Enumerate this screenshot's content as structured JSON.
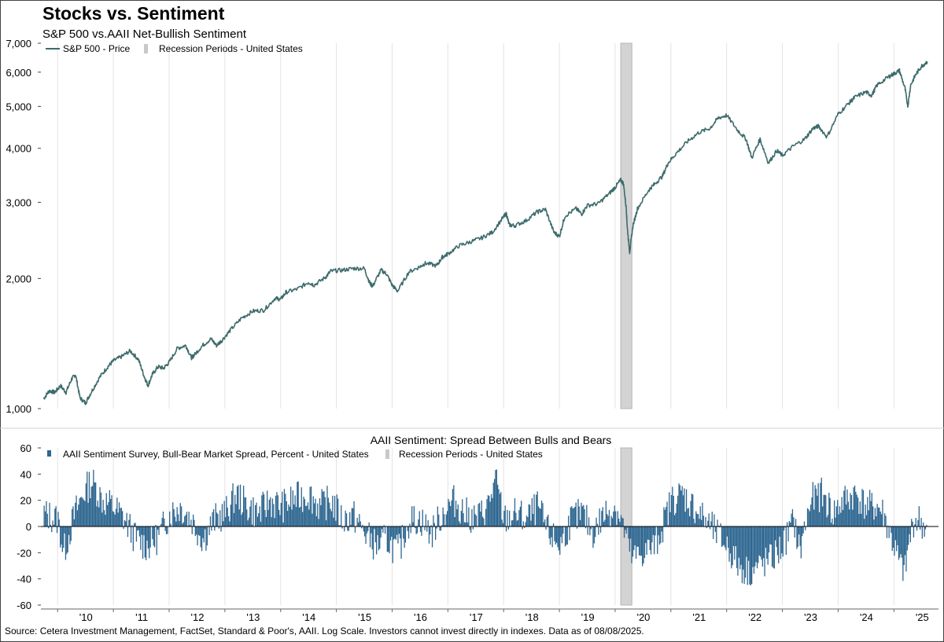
{
  "title": "Stocks vs. Sentiment",
  "subtitle": "S&P 500 vs.AAII Net-Bullish Sentiment",
  "source": "Source: Cetera Investment Management, FactSet, Standard & Poor's, AAII. Log Scale. Investors cannot invest directly in indexes. Data as of 08/08/2025.",
  "colors": {
    "price_line": "#3d6b6b",
    "spread_bars": "#2e6690",
    "recession": "#d3d3d3",
    "grid": "#e3e3e3"
  },
  "chart_data": [
    {
      "type": "line",
      "scale": "log",
      "ylim": [
        1000,
        7000
      ],
      "xlim": [
        2009.7,
        2025.8
      ],
      "y_ticks": [
        1000,
        2000,
        3000,
        4000,
        5000,
        6000,
        7000
      ],
      "y_tick_labels": [
        "1,000",
        "2,000",
        "3,000",
        "4,000",
        "5,000",
        "6,000",
        "7,000"
      ],
      "x_tick_labels": [
        "'10",
        "'11",
        "'12",
        "'13",
        "'14",
        "'15",
        "'16",
        "'17",
        "'18",
        "'19",
        "'20",
        "'21",
        "'22",
        "'23",
        "'24",
        "'25"
      ],
      "x_ticks": [
        2010,
        2011,
        2012,
        2013,
        2014,
        2015,
        2016,
        2017,
        2018,
        2019,
        2020,
        2021,
        2022,
        2023,
        2024,
        2025
      ],
      "legend": [
        "S&P 500 - Price",
        "Recession Periods - United States"
      ],
      "legend_position": "top-left",
      "grid": "vertical",
      "recession": [
        2020.1,
        2020.3
      ],
      "series": [
        {
          "name": "S&P 500 - Price",
          "x": [
            2009.75,
            2009.85,
            2009.95,
            2010.05,
            2010.15,
            2010.25,
            2010.32,
            2010.4,
            2010.5,
            2010.6,
            2010.75,
            2010.9,
            2011.0,
            2011.15,
            2011.3,
            2011.45,
            2011.55,
            2011.62,
            2011.7,
            2011.8,
            2011.9,
            2012.0,
            2012.15,
            2012.3,
            2012.4,
            2012.45,
            2012.6,
            2012.75,
            2012.85,
            2012.95,
            2013.1,
            2013.3,
            2013.5,
            2013.7,
            2013.9,
            2014.0,
            2014.1,
            2014.3,
            2014.5,
            2014.6,
            2014.8,
            2014.9,
            2015.1,
            2015.3,
            2015.5,
            2015.6,
            2015.65,
            2015.8,
            2015.9,
            2016.0,
            2016.1,
            2016.3,
            2016.5,
            2016.6,
            2016.8,
            2016.9,
            2017.0,
            2017.2,
            2017.4,
            2017.6,
            2017.8,
            2018.0,
            2018.05,
            2018.1,
            2018.2,
            2018.4,
            2018.6,
            2018.75,
            2018.9,
            2019.0,
            2019.1,
            2019.3,
            2019.4,
            2019.5,
            2019.7,
            2019.9,
            2020.0,
            2020.1,
            2020.15,
            2020.2,
            2020.22,
            2020.26,
            2020.32,
            2020.4,
            2020.6,
            2020.7,
            2020.85,
            2020.95,
            2021.1,
            2021.3,
            2021.5,
            2021.7,
            2021.85,
            2022.0,
            2022.2,
            2022.35,
            2022.45,
            2022.6,
            2022.75,
            2022.9,
            2023.0,
            2023.2,
            2023.4,
            2023.55,
            2023.65,
            2023.8,
            2024.0,
            2024.2,
            2024.3,
            2024.5,
            2024.6,
            2024.7,
            2024.9,
            2025.0,
            2025.1,
            2025.2,
            2025.25,
            2025.3,
            2025.4,
            2025.5,
            2025.6
          ],
          "y": [
            1055,
            1100,
            1090,
            1130,
            1090,
            1170,
            1200,
            1060,
            1030,
            1090,
            1180,
            1250,
            1290,
            1320,
            1360,
            1300,
            1190,
            1130,
            1200,
            1250,
            1240,
            1280,
            1380,
            1400,
            1310,
            1330,
            1400,
            1450,
            1400,
            1440,
            1520,
            1620,
            1680,
            1690,
            1800,
            1790,
            1860,
            1890,
            1960,
            1930,
            2010,
            2080,
            2090,
            2110,
            2110,
            1950,
            1920,
            2090,
            2050,
            1930,
            1870,
            2070,
            2130,
            2170,
            2140,
            2240,
            2280,
            2380,
            2430,
            2480,
            2560,
            2780,
            2820,
            2660,
            2650,
            2720,
            2850,
            2890,
            2560,
            2500,
            2790,
            2900,
            2820,
            2950,
            2980,
            3150,
            3250,
            3380,
            3310,
            2900,
            2600,
            2300,
            2650,
            2900,
            3200,
            3300,
            3450,
            3700,
            3900,
            4150,
            4350,
            4450,
            4700,
            4770,
            4400,
            4200,
            3800,
            4200,
            3700,
            3950,
            3850,
            4050,
            4200,
            4450,
            4500,
            4250,
            4800,
            5100,
            5250,
            5400,
            5300,
            5600,
            5850,
            5950,
            6050,
            5500,
            5000,
            5600,
            5950,
            6200,
            6350
          ]
        }
      ]
    },
    {
      "type": "bar",
      "title": "AAII Sentiment: Spread Between Bulls and Bears",
      "ylim": [
        -60,
        60
      ],
      "y_ticks": [
        -60,
        -40,
        -20,
        0,
        20,
        40,
        60
      ],
      "xlim": [
        2009.7,
        2025.8
      ],
      "legend": [
        "AAII Sentiment Survey, Bull-Bear Market Spread, Percent - United States",
        "Recession Periods - United States"
      ],
      "legend_position": "top-left",
      "grid": "vertical",
      "recession": [
        2020.1,
        2020.3
      ],
      "anchors": {
        "x": [
          2009.75,
          2010.0,
          2010.1,
          2010.3,
          2010.45,
          2010.6,
          2010.8,
          2011.0,
          2011.2,
          2011.4,
          2011.6,
          2011.8,
          2012.0,
          2012.2,
          2012.4,
          2012.6,
          2012.8,
          2013.0,
          2013.2,
          2013.4,
          2013.6,
          2013.8,
          2014.0,
          2014.2,
          2014.5,
          2014.7,
          2014.9,
          2015.1,
          2015.3,
          2015.5,
          2015.7,
          2015.9,
          2016.1,
          2016.3,
          2016.5,
          2016.7,
          2016.9,
          2017.0,
          2017.1,
          2017.3,
          2017.5,
          2017.7,
          2017.85,
          2018.0,
          2018.2,
          2018.4,
          2018.6,
          2018.8,
          2019.0,
          2019.2,
          2019.4,
          2019.6,
          2019.8,
          2020.0,
          2020.1,
          2020.3,
          2020.5,
          2020.7,
          2020.8,
          2021.0,
          2021.2,
          2021.4,
          2021.6,
          2021.8,
          2022.0,
          2022.2,
          2022.4,
          2022.6,
          2022.8,
          2023.0,
          2023.2,
          2023.3,
          2023.5,
          2023.7,
          2023.9,
          2024.1,
          2024.3,
          2024.5,
          2024.7,
          2024.8,
          2024.95,
          2025.1,
          2025.2,
          2025.25,
          2025.35,
          2025.45,
          2025.6
        ],
        "y": [
          10,
          5,
          -20,
          10,
          25,
          35,
          20,
          15,
          5,
          -10,
          -15,
          -8,
          10,
          15,
          5,
          -10,
          5,
          10,
          25,
          15,
          10,
          20,
          15,
          20,
          25,
          15,
          20,
          5,
          8,
          -5,
          -15,
          -10,
          -20,
          5,
          5,
          -5,
          10,
          15,
          20,
          10,
          5,
          15,
          35,
          5,
          10,
          5,
          15,
          -5,
          -15,
          5,
          10,
          -5,
          10,
          15,
          5,
          -25,
          -20,
          -15,
          -5,
          20,
          25,
          15,
          5,
          -5,
          -15,
          -30,
          -35,
          -30,
          -25,
          -15,
          5,
          -20,
          20,
          25,
          10,
          20,
          25,
          15,
          15,
          10,
          -10,
          -30,
          -35,
          -15,
          5,
          5,
          -5
        ]
      }
    }
  ]
}
